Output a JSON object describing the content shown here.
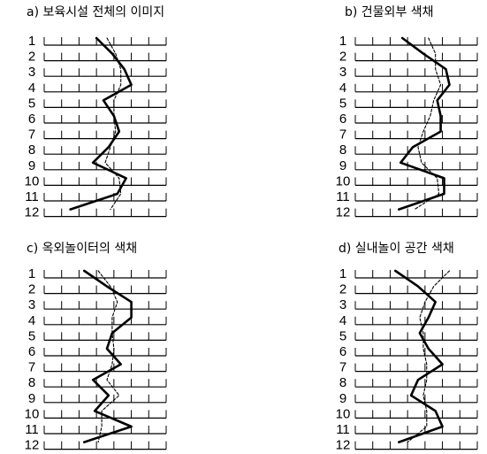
{
  "figure": {
    "row_labels": [
      "1",
      "2",
      "3",
      "4",
      "5",
      "6",
      "7",
      "8",
      "9",
      "10",
      "11",
      "12"
    ]
  },
  "chart_data": [
    {
      "type": "line",
      "title": "a) 보육시설 전체의 이미지",
      "y": [
        1,
        2,
        3,
        4,
        5,
        6,
        7,
        8,
        9,
        10,
        11,
        12
      ],
      "xlim": [
        0,
        7
      ],
      "series": [
        {
          "style": "solid",
          "values": [
            3.0,
            3.9,
            4.6,
            5.0,
            3.4,
            4.0,
            4.3,
            3.7,
            2.8,
            4.7,
            4.2,
            1.5
          ]
        },
        {
          "style": "dashed",
          "values": [
            3.6,
            4.1,
            4.4,
            4.4,
            4.0,
            4.0,
            4.1,
            3.8,
            3.5,
            4.3,
            4.4,
            3.8
          ]
        }
      ]
    },
    {
      "type": "line",
      "title": "b) 건물외부 색채",
      "y": [
        1,
        2,
        3,
        4,
        5,
        6,
        7,
        8,
        9,
        10,
        11,
        12
      ],
      "xlim": [
        0,
        7
      ],
      "series": [
        {
          "style": "solid",
          "values": [
            2.7,
            3.9,
            5.2,
            5.4,
            4.7,
            4.9,
            4.9,
            3.3,
            2.6,
            5.1,
            5.1,
            2.5
          ]
        },
        {
          "style": "dashed",
          "values": [
            4.2,
            4.6,
            4.6,
            4.9,
            4.5,
            4.3,
            3.9,
            3.6,
            3.8,
            4.7,
            4.8,
            3.4
          ]
        }
      ]
    },
    {
      "type": "line",
      "title": "c) 옥외놀이터의 색채",
      "y": [
        1,
        2,
        3,
        4,
        5,
        6,
        7,
        8,
        9,
        10,
        11,
        12
      ],
      "xlim": [
        0,
        7
      ],
      "series": [
        {
          "style": "solid",
          "values": [
            2.3,
            3.6,
            5.0,
            5.0,
            3.9,
            3.6,
            4.4,
            2.8,
            3.7,
            2.9,
            5.0,
            2.3
          ]
        },
        {
          "style": "dashed",
          "values": [
            3.1,
            3.8,
            4.2,
            3.9,
            3.9,
            4.0,
            3.9,
            3.6,
            4.3,
            3.3,
            3.3,
            3.1
          ]
        }
      ]
    },
    {
      "type": "line",
      "title": "d) 실내놀이 공간 색채",
      "y": [
        1,
        2,
        3,
        4,
        5,
        6,
        7,
        8,
        9,
        10,
        11,
        12
      ],
      "xlim": [
        0,
        7
      ],
      "series": [
        {
          "style": "solid",
          "values": [
            2.3,
            3.6,
            4.6,
            4.2,
            3.7,
            4.2,
            5.0,
            3.6,
            3.2,
            4.6,
            5.0,
            2.5
          ]
        },
        {
          "style": "dashed",
          "values": [
            5.4,
            4.5,
            4.0,
            3.7,
            3.9,
            3.9,
            4.1,
            4.1,
            3.9,
            4.1,
            4.1,
            3.0
          ]
        }
      ]
    }
  ]
}
